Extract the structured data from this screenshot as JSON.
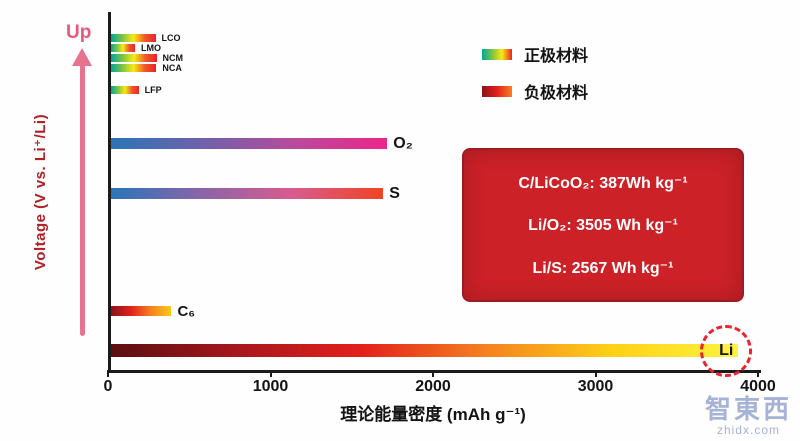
{
  "watermark": {
    "brand": "智東西",
    "site": "zhidx.com",
    "color": "#a6b2d6"
  },
  "chart_data": {
    "type": "bar",
    "orientation": "horizontal",
    "title": "",
    "xlabel": "理论能量密度 (mAh g⁻¹)",
    "ylabel": "Voltage (V vs. Li⁺/Li)",
    "up_label": "Up",
    "xlim": [
      0,
      4000
    ],
    "xticks": [
      0,
      1000,
      2000,
      3000,
      4000
    ],
    "grid": false,
    "bars": [
      {
        "id": "lco",
        "label": "LCO",
        "value": 274,
        "group": "cathode",
        "colors": [
          "#00a89c",
          "#7dc242",
          "#f5eb13",
          "#f0592a",
          "#ec2227"
        ]
      },
      {
        "id": "lmo",
        "label": "LMO",
        "value": 148,
        "group": "cathode",
        "colors": [
          "#00a89c",
          "#7dc242",
          "#f5eb13",
          "#f0592a",
          "#ec2227"
        ]
      },
      {
        "id": "ncm",
        "label": "NCM",
        "value": 280,
        "group": "cathode",
        "colors": [
          "#00a89c",
          "#7dc242",
          "#f5eb13",
          "#f0592a",
          "#ec2227"
        ]
      },
      {
        "id": "nca",
        "label": "NCA",
        "value": 279,
        "group": "cathode",
        "colors": [
          "#00a89c",
          "#7dc242",
          "#f5eb13",
          "#f0592a",
          "#ec2227"
        ]
      },
      {
        "id": "lfp",
        "label": "LFP",
        "value": 170,
        "group": "cathode",
        "colors": [
          "#00a89c",
          "#7dc242",
          "#f5eb13",
          "#f0592a",
          "#ec2227"
        ]
      },
      {
        "id": "o2",
        "label": "O₂",
        "value": 1700,
        "group": "cathode",
        "colors": [
          "#2b74b8",
          "#6f61ab",
          "#b94a9b",
          "#ec268b"
        ]
      },
      {
        "id": "s",
        "label": "S",
        "value": 1675,
        "group": "cathode",
        "colors": [
          "#2b74b8",
          "#8a65a8",
          "#d85b8f",
          "#ef4423"
        ]
      },
      {
        "id": "c6",
        "label": "C₆",
        "value": 372,
        "group": "anode",
        "colors": [
          "#8a1417",
          "#e3201b",
          "#f58220",
          "#f9c916"
        ]
      },
      {
        "id": "li",
        "label": "Li",
        "value": 3860,
        "group": "anode",
        "colors": [
          "#5a0f12",
          "#a6171c",
          "#e3201b",
          "#f58220",
          "#fdd116",
          "#fff33f"
        ]
      }
    ],
    "legend": [
      {
        "label": "正极材料",
        "colors": [
          "#00a89c",
          "#7dc242",
          "#f5eb13",
          "#ec2227"
        ]
      },
      {
        "label": "负极材料",
        "colors": [
          "#8a1417",
          "#e3201b",
          "#f58220"
        ]
      }
    ],
    "legend_position": "top-right",
    "annotation_box": {
      "bg_color": "#cb2127",
      "border_color": "#9e1b21",
      "text_color": "#ffffff",
      "lines": [
        "C/LiCoO₂: 387Wh kg⁻¹",
        "Li/O₂: 3505 Wh kg⁻¹",
        "Li/S: 2567 Wh kg⁻¹"
      ]
    },
    "highlight": {
      "bar": "li",
      "style": "dashed-red-circle"
    }
  }
}
